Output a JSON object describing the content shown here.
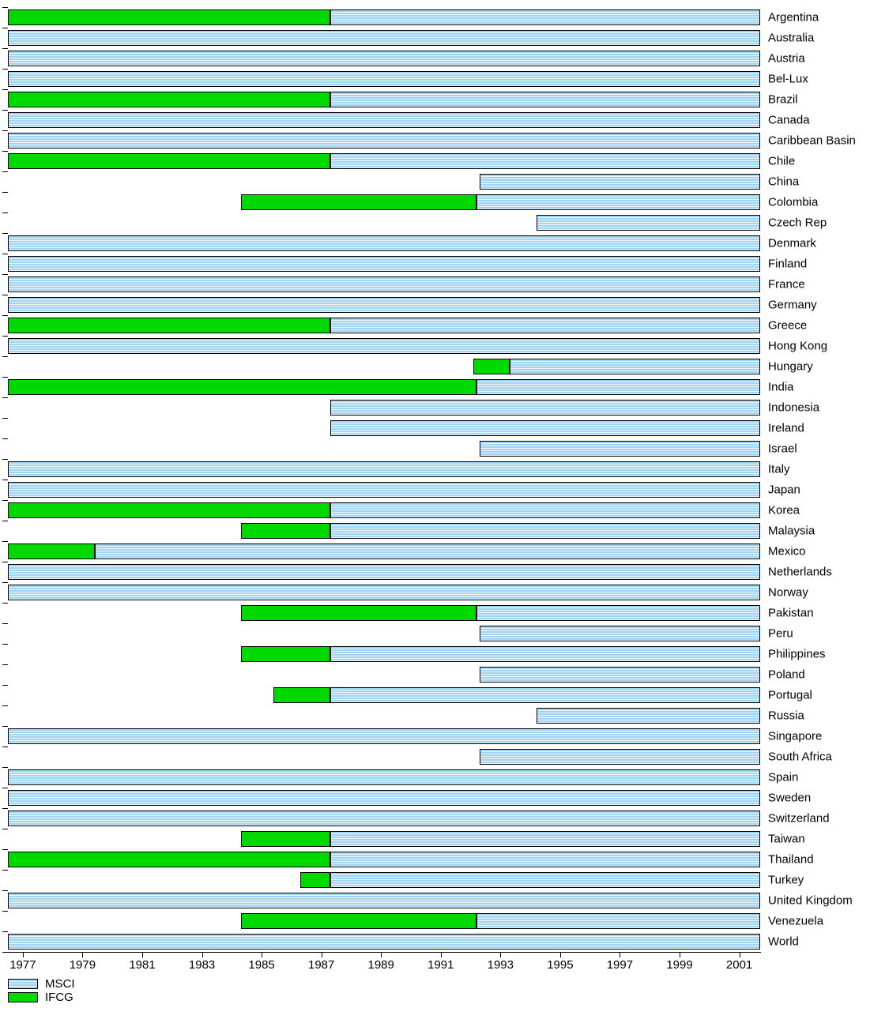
{
  "chart_data": {
    "type": "bar",
    "orientation": "horizontal",
    "description": "Index coverage periods per country for MSCI and IFCG series",
    "x_axis": {
      "min": 1976.5,
      "max": 2001.7,
      "ticks": [
        1977,
        1979,
        1981,
        1983,
        1985,
        1987,
        1989,
        1991,
        1993,
        1995,
        1997,
        1999,
        2001
      ]
    },
    "legend": [
      {
        "id": "msci",
        "label": "MSCI",
        "color": "#A2D4F0",
        "pattern": "horizontal-stripes"
      },
      {
        "id": "ifcg",
        "label": "IFCG",
        "color": "#00D900",
        "pattern": "solid"
      }
    ],
    "rows": [
      {
        "label": "Argentina",
        "segments": [
          {
            "series": "IFCG",
            "start": 1976.5,
            "end": 1987.3
          },
          {
            "series": "MSCI",
            "start": 1987.3,
            "end": 2001.7
          }
        ]
      },
      {
        "label": "Australia",
        "segments": [
          {
            "series": "MSCI",
            "start": 1976.5,
            "end": 2001.7
          }
        ]
      },
      {
        "label": "Austria",
        "segments": [
          {
            "series": "MSCI",
            "start": 1976.5,
            "end": 2001.7
          }
        ]
      },
      {
        "label": "Bel-Lux",
        "segments": [
          {
            "series": "MSCI",
            "start": 1976.5,
            "end": 2001.7
          }
        ]
      },
      {
        "label": "Brazil",
        "segments": [
          {
            "series": "IFCG",
            "start": 1976.5,
            "end": 1987.3
          },
          {
            "series": "MSCI",
            "start": 1987.3,
            "end": 2001.7
          }
        ]
      },
      {
        "label": "Canada",
        "segments": [
          {
            "series": "MSCI",
            "start": 1976.5,
            "end": 2001.7
          }
        ]
      },
      {
        "label": "Caribbean Basin",
        "segments": [
          {
            "series": "MSCI",
            "start": 1976.5,
            "end": 2001.7
          }
        ]
      },
      {
        "label": "Chile",
        "segments": [
          {
            "series": "IFCG",
            "start": 1976.5,
            "end": 1987.3
          },
          {
            "series": "MSCI",
            "start": 1987.3,
            "end": 2001.7
          }
        ]
      },
      {
        "label": "China",
        "segments": [
          {
            "series": "MSCI",
            "start": 1992.3,
            "end": 2001.7
          }
        ]
      },
      {
        "label": "Colombia",
        "segments": [
          {
            "series": "IFCG",
            "start": 1984.3,
            "end": 1992.2
          },
          {
            "series": "MSCI",
            "start": 1992.2,
            "end": 2001.7
          }
        ]
      },
      {
        "label": "Czech Rep",
        "segments": [
          {
            "series": "MSCI",
            "start": 1994.2,
            "end": 2001.7
          }
        ]
      },
      {
        "label": "Denmark",
        "segments": [
          {
            "series": "MSCI",
            "start": 1976.5,
            "end": 2001.7
          }
        ]
      },
      {
        "label": "Finland",
        "segments": [
          {
            "series": "MSCI",
            "start": 1976.5,
            "end": 2001.7
          }
        ]
      },
      {
        "label": "France",
        "segments": [
          {
            "series": "MSCI",
            "start": 1976.5,
            "end": 2001.7
          }
        ]
      },
      {
        "label": "Germany",
        "segments": [
          {
            "series": "MSCI",
            "start": 1976.5,
            "end": 2001.7
          }
        ]
      },
      {
        "label": "Greece",
        "segments": [
          {
            "series": "IFCG",
            "start": 1976.5,
            "end": 1987.3
          },
          {
            "series": "MSCI",
            "start": 1987.3,
            "end": 2001.7
          }
        ]
      },
      {
        "label": "Hong Kong",
        "segments": [
          {
            "series": "MSCI",
            "start": 1976.5,
            "end": 2001.7
          }
        ]
      },
      {
        "label": "Hungary",
        "segments": [
          {
            "series": "IFCG",
            "start": 1992.1,
            "end": 1993.3
          },
          {
            "series": "MSCI",
            "start": 1993.3,
            "end": 2001.7
          }
        ]
      },
      {
        "label": "India",
        "segments": [
          {
            "series": "IFCG",
            "start": 1976.5,
            "end": 1992.2
          },
          {
            "series": "MSCI",
            "start": 1992.2,
            "end": 2001.7
          }
        ]
      },
      {
        "label": "Indonesia",
        "segments": [
          {
            "series": "MSCI",
            "start": 1987.3,
            "end": 2001.7
          }
        ]
      },
      {
        "label": "Ireland",
        "segments": [
          {
            "series": "MSCI",
            "start": 1987.3,
            "end": 2001.7
          }
        ]
      },
      {
        "label": "Israel",
        "segments": [
          {
            "series": "MSCI",
            "start": 1992.3,
            "end": 2001.7
          }
        ]
      },
      {
        "label": "Italy",
        "segments": [
          {
            "series": "MSCI",
            "start": 1976.5,
            "end": 2001.7
          }
        ]
      },
      {
        "label": "Japan",
        "segments": [
          {
            "series": "MSCI",
            "start": 1976.5,
            "end": 2001.7
          }
        ]
      },
      {
        "label": "Korea",
        "segments": [
          {
            "series": "IFCG",
            "start": 1976.5,
            "end": 1987.3
          },
          {
            "series": "MSCI",
            "start": 1987.3,
            "end": 2001.7
          }
        ]
      },
      {
        "label": "Malaysia",
        "segments": [
          {
            "series": "IFCG",
            "start": 1984.3,
            "end": 1987.3
          },
          {
            "series": "MSCI",
            "start": 1987.3,
            "end": 2001.7
          }
        ]
      },
      {
        "label": "Mexico",
        "segments": [
          {
            "series": "IFCG",
            "start": 1976.5,
            "end": 1979.4
          },
          {
            "series": "MSCI",
            "start": 1979.4,
            "end": 2001.7
          }
        ]
      },
      {
        "label": "Netherlands",
        "segments": [
          {
            "series": "MSCI",
            "start": 1976.5,
            "end": 2001.7
          }
        ]
      },
      {
        "label": "Norway",
        "segments": [
          {
            "series": "MSCI",
            "start": 1976.5,
            "end": 2001.7
          }
        ]
      },
      {
        "label": "Pakistan",
        "segments": [
          {
            "series": "IFCG",
            "start": 1984.3,
            "end": 1992.2
          },
          {
            "series": "MSCI",
            "start": 1992.2,
            "end": 2001.7
          }
        ]
      },
      {
        "label": "Peru",
        "segments": [
          {
            "series": "MSCI",
            "start": 1992.3,
            "end": 2001.7
          }
        ]
      },
      {
        "label": "Philippines",
        "segments": [
          {
            "series": "IFCG",
            "start": 1984.3,
            "end": 1987.3
          },
          {
            "series": "MSCI",
            "start": 1987.3,
            "end": 2001.7
          }
        ]
      },
      {
        "label": "Poland",
        "segments": [
          {
            "series": "MSCI",
            "start": 1992.3,
            "end": 2001.7
          }
        ]
      },
      {
        "label": "Portugal",
        "segments": [
          {
            "series": "IFCG",
            "start": 1985.4,
            "end": 1987.3
          },
          {
            "series": "MSCI",
            "start": 1987.3,
            "end": 2001.7
          }
        ]
      },
      {
        "label": "Russia",
        "segments": [
          {
            "series": "MSCI",
            "start": 1994.2,
            "end": 2001.7
          }
        ]
      },
      {
        "label": "Singapore",
        "segments": [
          {
            "series": "MSCI",
            "start": 1976.5,
            "end": 2001.7
          }
        ]
      },
      {
        "label": "South Africa",
        "segments": [
          {
            "series": "MSCI",
            "start": 1992.3,
            "end": 2001.7
          }
        ]
      },
      {
        "label": "Spain",
        "segments": [
          {
            "series": "MSCI",
            "start": 1976.5,
            "end": 2001.7
          }
        ]
      },
      {
        "label": "Sweden",
        "segments": [
          {
            "series": "MSCI",
            "start": 1976.5,
            "end": 2001.7
          }
        ]
      },
      {
        "label": "Switzerland",
        "segments": [
          {
            "series": "MSCI",
            "start": 1976.5,
            "end": 2001.7
          }
        ]
      },
      {
        "label": "Taiwan",
        "segments": [
          {
            "series": "IFCG",
            "start": 1984.3,
            "end": 1987.3
          },
          {
            "series": "MSCI",
            "start": 1987.3,
            "end": 2001.7
          }
        ]
      },
      {
        "label": "Thailand",
        "segments": [
          {
            "series": "IFCG",
            "start": 1976.5,
            "end": 1987.3
          },
          {
            "series": "MSCI",
            "start": 1987.3,
            "end": 2001.7
          }
        ]
      },
      {
        "label": "Turkey",
        "segments": [
          {
            "series": "IFCG",
            "start": 1986.3,
            "end": 1987.3
          },
          {
            "series": "MSCI",
            "start": 1987.3,
            "end": 2001.7
          }
        ]
      },
      {
        "label": "United Kingdom",
        "segments": [
          {
            "series": "MSCI",
            "start": 1976.5,
            "end": 2001.7
          }
        ]
      },
      {
        "label": "Venezuela",
        "segments": [
          {
            "series": "IFCG",
            "start": 1984.3,
            "end": 1992.2
          },
          {
            "series": "MSCI",
            "start": 1992.2,
            "end": 2001.7
          }
        ]
      },
      {
        "label": "World",
        "segments": [
          {
            "series": "MSCI",
            "start": 1976.5,
            "end": 2001.7
          }
        ]
      }
    ]
  }
}
